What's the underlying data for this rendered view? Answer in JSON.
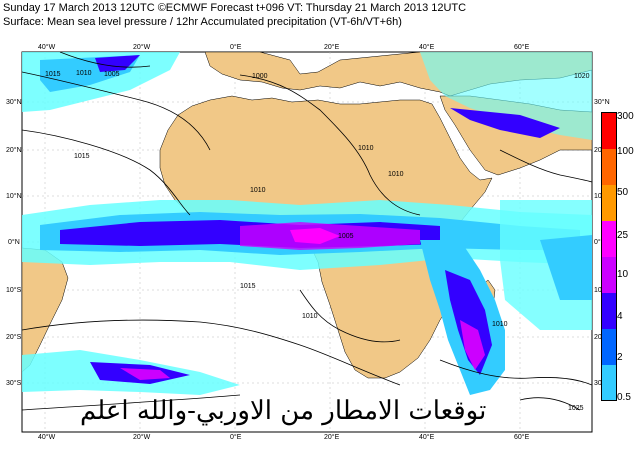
{
  "header": {
    "line1": "Sunday 17 March 2013 12UTC ©ECMWF Forecast t+096 VT: Thursday 21 March 2013 12UTC",
    "line2": "Surface: Mean sea level pressure / 12hr Accumulated precipitation (VT-6h/VT+6h)"
  },
  "map": {
    "lon_labels_top": [
      "40°W",
      "20°W",
      "0°E",
      "20°E",
      "40°E",
      "60°E"
    ],
    "lon_labels_bottom": [
      "40°W",
      "20°W",
      "0°E",
      "20°E",
      "40°E",
      "60°E"
    ],
    "lat_labels_left": [
      "30°N",
      "20°N",
      "10°N",
      "0°N",
      "10°S",
      "20°S",
      "30°S"
    ],
    "lat_labels_right": [
      "30°N",
      "20°N",
      "10°N",
      "0°N",
      "10°S",
      "20°S",
      "30°S"
    ],
    "isobar_labels": [
      "1015",
      "1010",
      "1005",
      "1000",
      "1010",
      "1015",
      "1010",
      "1015",
      "1010",
      "1005",
      "1010",
      "1010",
      "1020",
      "1025"
    ],
    "land_color": "#f1c887",
    "ocean_color": "#ffffff"
  },
  "legend": {
    "labels": [
      "300",
      "100",
      "50",
      "25",
      "10",
      "4",
      "2",
      "0.5"
    ],
    "colors": [
      "#ff0000",
      "#ff6600",
      "#ff9900",
      "#ff00ff",
      "#cc00ff",
      "#3300ff",
      "#0066ff",
      "#33ccff",
      "#66ffff"
    ]
  },
  "overlay_text": "توقعات الامطار من الاوربي-والله اعلم"
}
